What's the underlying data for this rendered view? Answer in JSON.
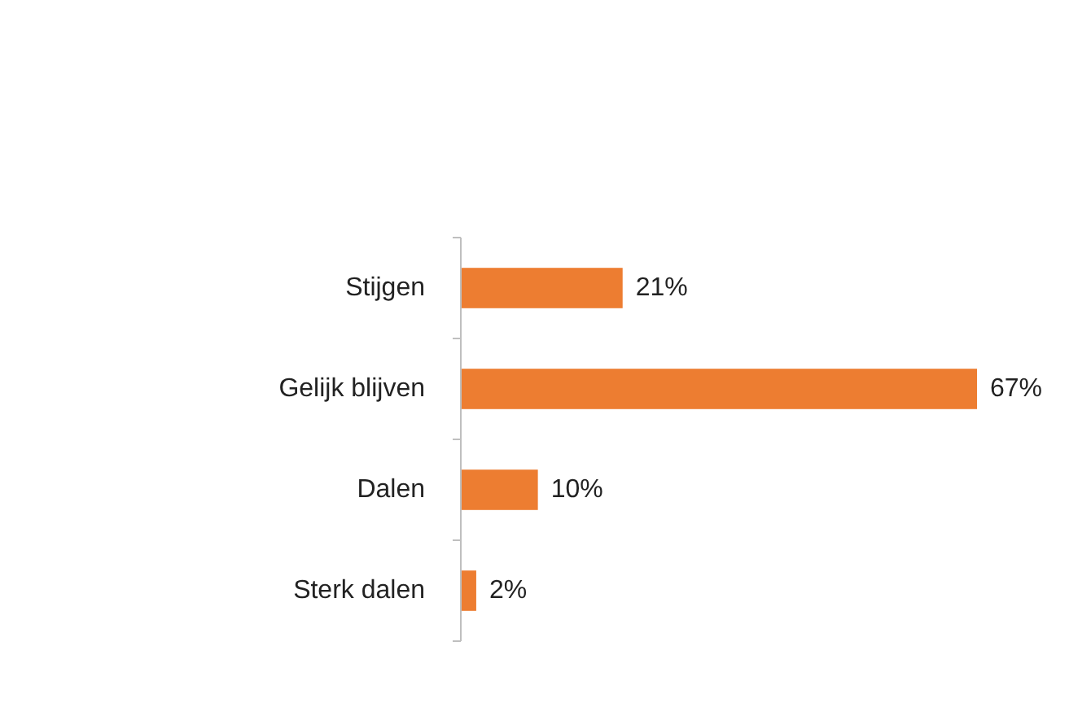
{
  "chart_data": {
    "type": "bar",
    "orientation": "horizontal",
    "categories": [
      "Stijgen",
      "Gelijk blijven",
      "Dalen",
      "Sterk dalen"
    ],
    "values": [
      21,
      67,
      10,
      2
    ],
    "color": "#ed7d31",
    "value_labels": [
      "21%",
      "67%",
      "10%",
      "2%"
    ]
  }
}
